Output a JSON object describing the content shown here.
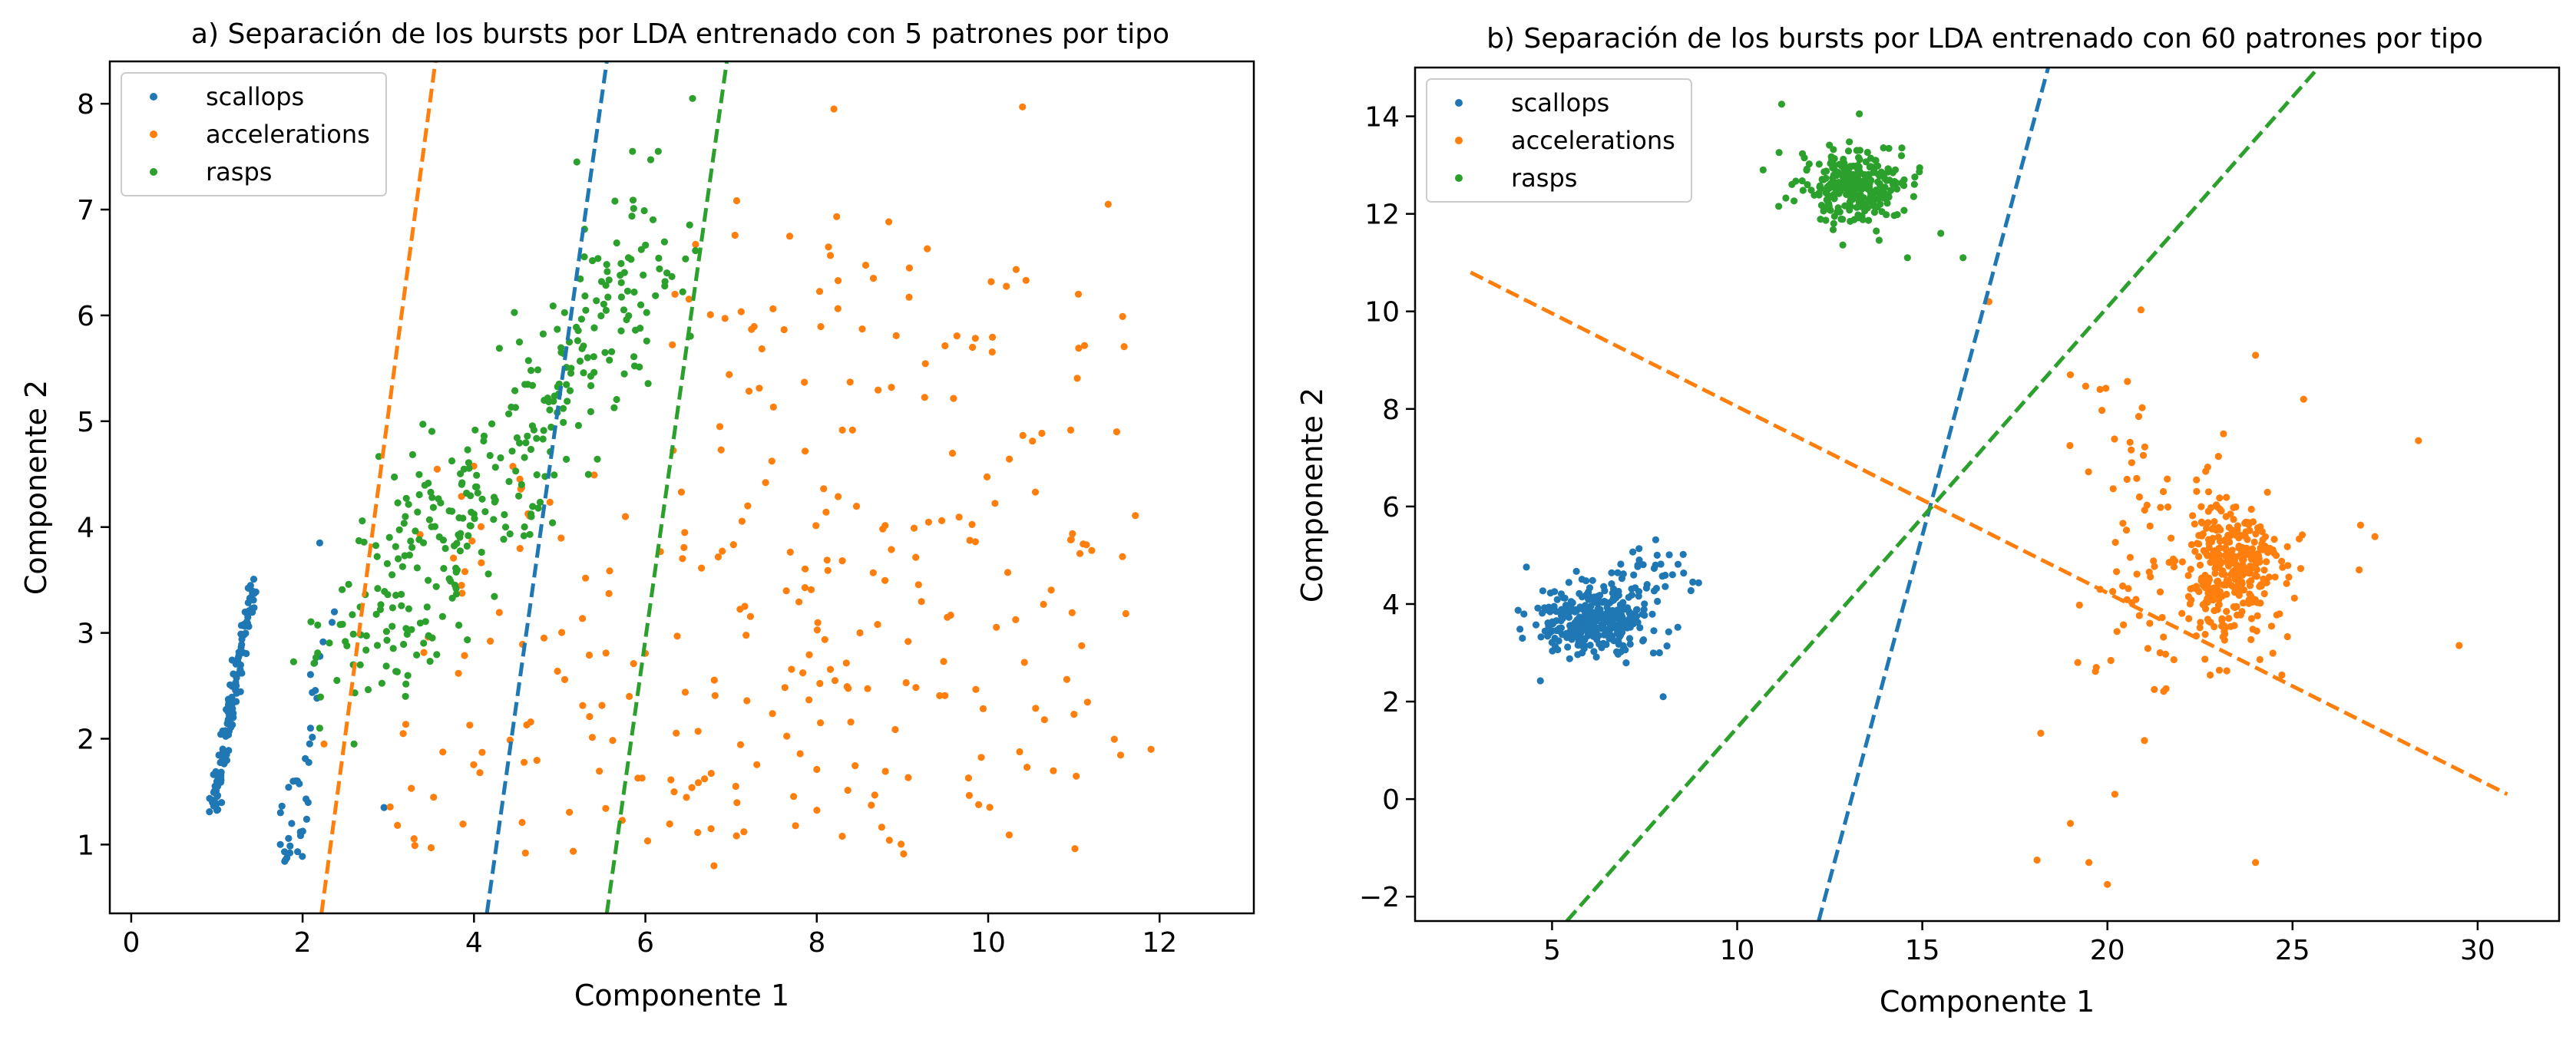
{
  "colors": {
    "scallops": "#1f77b4",
    "accelerations": "#ff7f0e",
    "rasps": "#2ca02c"
  },
  "chart_data": [
    {
      "type": "scatter",
      "title": "a) Separación de los bursts por LDA entrenado con 5 patrones por tipo",
      "xlabel": "Componente 1",
      "ylabel": "Componente 2",
      "xlim": [
        -0.25,
        13.1
      ],
      "ylim": [
        0.35,
        8.4
      ],
      "xticks": [
        0,
        2,
        4,
        6,
        8,
        10,
        12
      ],
      "yticks": [
        1,
        2,
        3,
        4,
        5,
        6,
        7,
        8
      ],
      "grid": false,
      "legend": "top-left",
      "series": [
        {
          "name": "scallops",
          "color_key": "scallops",
          "clusters": [
            {
              "kind": "band",
              "n": 130,
              "from": [
                0.95,
                1.3
              ],
              "to": [
                1.45,
                3.6
              ],
              "spread": 0.05,
              "seed": 11
            },
            {
              "kind": "band",
              "n": 38,
              "from": [
                1.85,
                0.85
              ],
              "to": [
                2.3,
                3.2
              ],
              "spread": 0.12,
              "seed": 12
            },
            {
              "kind": "points",
              "points": [
                [
                  2.95,
                  1.35
                ],
                [
                  2.2,
                  3.85
                ]
              ]
            }
          ]
        },
        {
          "name": "accelerations",
          "color_key": "accelerations",
          "clusters": [
            {
              "kind": "uniform",
              "n": 230,
              "x": [
                3.0,
                11.8
              ],
              "y": [
                0.9,
                4.6
              ],
              "seed": 21
            },
            {
              "kind": "uniform",
              "n": 70,
              "x": [
                6.3,
                11.6
              ],
              "y": [
                4.6,
                7.2
              ],
              "seed": 22
            },
            {
              "kind": "points",
              "points": [
                [
                  8.2,
                  7.95
                ],
                [
                  10.4,
                  7.97
                ],
                [
                  11.4,
                  7.05
                ],
                [
                  11.9,
                  1.9
                ],
                [
                  6.8,
                  0.8
                ],
                [
                  4.6,
                  0.92
                ],
                [
                  3.5,
                  0.97
                ],
                [
                  2.25,
                  1.95
                ],
                [
                  11.5,
                  4.9
                ]
              ]
            }
          ]
        },
        {
          "name": "rasps",
          "color_key": "rasps",
          "clusters": [
            {
              "kind": "band",
              "n": 330,
              "from": [
                2.55,
                2.7
              ],
              "to": [
                6.1,
                6.6
              ],
              "spread": 0.65,
              "seed": 31
            },
            {
              "kind": "points",
              "points": [
                [
                  6.55,
                  8.05
                ],
                [
                  6.15,
                  7.55
                ],
                [
                  5.2,
                  7.45
                ],
                [
                  5.85,
                  7.55
                ],
                [
                  2.2,
                  2.1
                ],
                [
                  3.2,
                  2.4
                ],
                [
                  2.6,
                  1.95
                ]
              ]
            }
          ]
        }
      ],
      "lines": [
        {
          "color_key": "accelerations",
          "from": [
            2.22,
            0.35
          ],
          "to": [
            3.55,
            8.4
          ]
        },
        {
          "color_key": "scallops",
          "from": [
            4.15,
            0.35
          ],
          "to": [
            5.55,
            8.4
          ]
        },
        {
          "color_key": "rasps",
          "from": [
            5.55,
            0.35
          ],
          "to": [
            6.95,
            8.4
          ]
        }
      ]
    },
    {
      "type": "scatter",
      "title": "b) Separación de los bursts por LDA entrenado con 60 patrones por tipo",
      "xlabel": "Componente 1",
      "ylabel": "Componente 2",
      "xlim": [
        1.3,
        32.2
      ],
      "ylim": [
        -2.5,
        15.0
      ],
      "xticks": [
        5,
        10,
        15,
        20,
        25,
        30
      ],
      "yticks": [
        -2,
        0,
        2,
        4,
        6,
        8,
        10,
        12,
        14
      ],
      "ytick_labels": [
        "−2",
        "0",
        "2",
        "4",
        "6",
        "8",
        "10",
        "12",
        "14"
      ],
      "grid": false,
      "legend": "top-left",
      "series": [
        {
          "name": "scallops",
          "color_key": "scallops",
          "clusters": [
            {
              "kind": "gauss",
              "n": 320,
              "c": [
                6.1,
                3.7
              ],
              "s": [
                0.7,
                0.38
              ],
              "seed": 41
            },
            {
              "kind": "gauss",
              "n": 35,
              "c": [
                7.5,
                4.7
              ],
              "s": [
                0.6,
                0.3
              ],
              "seed": 42
            },
            {
              "kind": "points",
              "points": [
                [
                  8.8,
                  4.45
                ],
                [
                  8.0,
                  2.1
                ],
                [
                  4.2,
                  3.3
                ],
                [
                  7.9,
                  3.0
                ]
              ]
            }
          ]
        },
        {
          "name": "accelerations",
          "color_key": "accelerations",
          "clusters": [
            {
              "kind": "gauss",
              "n": 260,
              "c": [
                23.3,
                4.7
              ],
              "s": [
                0.55,
                0.6
              ],
              "seed": 51
            },
            {
              "kind": "gauss",
              "n": 130,
              "c": [
                22.9,
                4.6
              ],
              "s": [
                1.3,
                1.2
              ],
              "seed": 52
            },
            {
              "kind": "gauss",
              "n": 22,
              "c": [
                20.3,
                6.8
              ],
              "s": [
                0.6,
                1.4
              ],
              "seed": 53
            },
            {
              "kind": "points",
              "points": [
                [
                  16.8,
                  10.2
                ],
                [
                  24.0,
                  9.1
                ],
                [
                  25.3,
                  8.2
                ],
                [
                  28.4,
                  7.35
                ],
                [
                  29.5,
                  3.15
                ],
                [
                  26.8,
                  4.7
                ],
                [
                  18.2,
                  1.35
                ],
                [
                  19.7,
                  2.7
                ],
                [
                  20.2,
                  0.1
                ],
                [
                  21.0,
                  1.2
                ],
                [
                  18.1,
                  -1.25
                ],
                [
                  19.0,
                  -0.5
                ],
                [
                  19.5,
                  -1.3
                ],
                [
                  20.0,
                  -1.75
                ],
                [
                  24.0,
                  -1.3
                ],
                [
                  19.8,
                  4.3
                ],
                [
                  19.2,
                  2.8
                ],
                [
                  19.8,
                  8.4
                ],
                [
                  19.0,
                  8.7
                ]
              ]
            }
          ]
        },
        {
          "name": "rasps",
          "color_key": "rasps",
          "clusters": [
            {
              "kind": "gauss",
              "n": 300,
              "c": [
                13.1,
                12.55
              ],
              "s": [
                0.75,
                0.35
              ],
              "seed": 61
            },
            {
              "kind": "points",
              "points": [
                [
                  11.2,
                  14.25
                ],
                [
                  13.3,
                  14.05
                ],
                [
                  16.1,
                  11.1
                ],
                [
                  15.5,
                  11.6
                ],
                [
                  10.7,
                  12.9
                ],
                [
                  14.6,
                  11.1
                ]
              ]
            }
          ]
        }
      ],
      "lines": [
        {
          "color_key": "accelerations",
          "from": [
            2.8,
            10.8
          ],
          "to": [
            30.8,
            0.1
          ]
        },
        {
          "color_key": "scallops",
          "from": [
            12.2,
            -2.5
          ],
          "to": [
            18.4,
            15.0
          ]
        },
        {
          "color_key": "rasps",
          "from": [
            5.4,
            -2.5
          ],
          "to": [
            25.7,
            15.0
          ]
        }
      ]
    }
  ]
}
